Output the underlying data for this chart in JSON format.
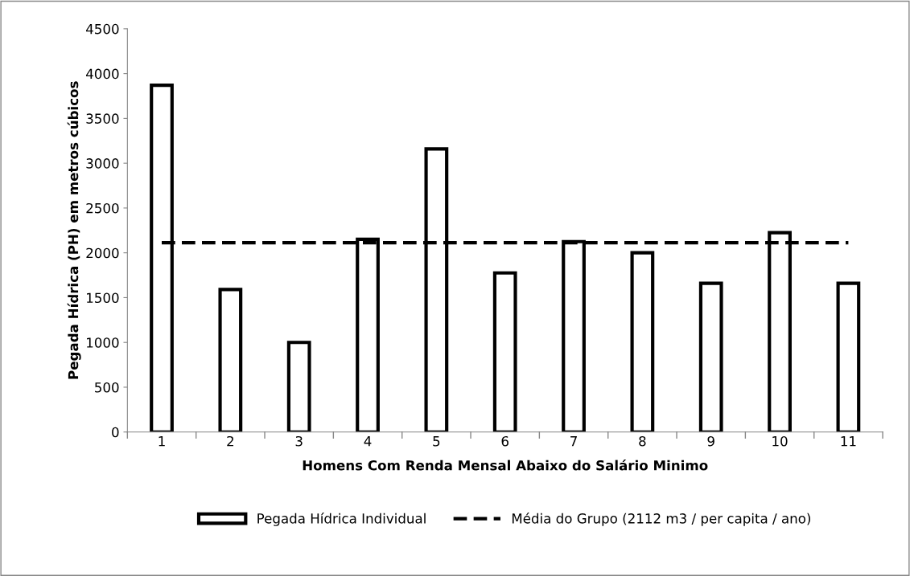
{
  "chart_data": {
    "type": "bar",
    "xlabel": "Homens Com Renda Mensal Abaixo do Salário Minimo",
    "ylabel": "Pegada Hídrica (PH) em metros cúbicos",
    "categories": [
      "1",
      "2",
      "3",
      "4",
      "5",
      "6",
      "7",
      "8",
      "9",
      "10",
      "11"
    ],
    "series": [
      {
        "name": "Pegada Hídrica Individual",
        "color": "#ffffff",
        "values": [
          3870,
          1590,
          1000,
          2150,
          3160,
          1775,
          2125,
          2000,
          1660,
          2225,
          1660
        ]
      }
    ],
    "ref_lines": [
      {
        "axis": "y",
        "value": 2112,
        "label": "Média do Grupo (2112 m3 / per capita / ano)",
        "color": "#000000",
        "line_style": "dashed"
      }
    ],
    "ylim": [
      0,
      4500
    ],
    "yticks": [
      0,
      500,
      1000,
      1500,
      2000,
      2500,
      3000,
      3500,
      4000,
      4500
    ],
    "grid": false,
    "legend": "bottom"
  }
}
